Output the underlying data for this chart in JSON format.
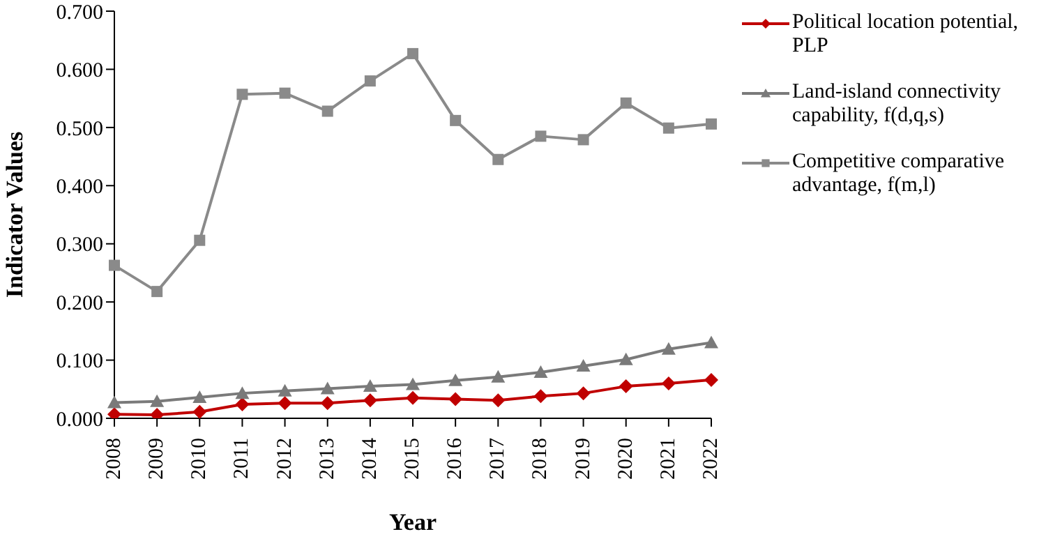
{
  "chart_data": {
    "type": "line",
    "xlabel": "Year",
    "ylabel": "Indicator Values",
    "categories": [
      "2008",
      "2009",
      "2010",
      "2011",
      "2012",
      "2013",
      "2014",
      "2015",
      "2016",
      "2017",
      "2018",
      "2019",
      "2020",
      "2021",
      "2022"
    ],
    "series": [
      {
        "name": "Political location potential, PLP",
        "color": "#c00000",
        "marker": "diamond",
        "values": [
          0.007,
          0.006,
          0.011,
          0.024,
          0.026,
          0.026,
          0.031,
          0.035,
          0.033,
          0.031,
          0.038,
          0.043,
          0.055,
          0.06,
          0.066
        ]
      },
      {
        "name": "Land-island connectivity capability, f(d,q,s)",
        "color": "#7a7a7a",
        "marker": "triangle",
        "values": [
          0.027,
          0.029,
          0.036,
          0.043,
          0.047,
          0.051,
          0.055,
          0.058,
          0.065,
          0.071,
          0.079,
          0.09,
          0.101,
          0.119,
          0.13
        ]
      },
      {
        "name": "Competitive comparative advantage, f(m,l)",
        "color": "#8a8a8a",
        "marker": "square",
        "values": [
          0.263,
          0.218,
          0.306,
          0.557,
          0.559,
          0.528,
          0.58,
          0.627,
          0.512,
          0.445,
          0.485,
          0.479,
          0.542,
          0.499,
          0.506
        ]
      }
    ],
    "ylim": [
      0,
      0.7
    ],
    "yticks": [
      {
        "value": 0,
        "label": "0.000"
      },
      {
        "value": 0.1,
        "label": "0.100"
      },
      {
        "value": 0.2,
        "label": "0.200"
      },
      {
        "value": 0.3,
        "label": "0.300"
      },
      {
        "value": 0.4,
        "label": "0.400"
      },
      {
        "value": 0.5,
        "label": "0.500"
      },
      {
        "value": 0.6,
        "label": "0.600"
      },
      {
        "value": 0.7,
        "label": "0.700"
      }
    ],
    "grid": false,
    "legend": "right",
    "line_style": "solid"
  }
}
